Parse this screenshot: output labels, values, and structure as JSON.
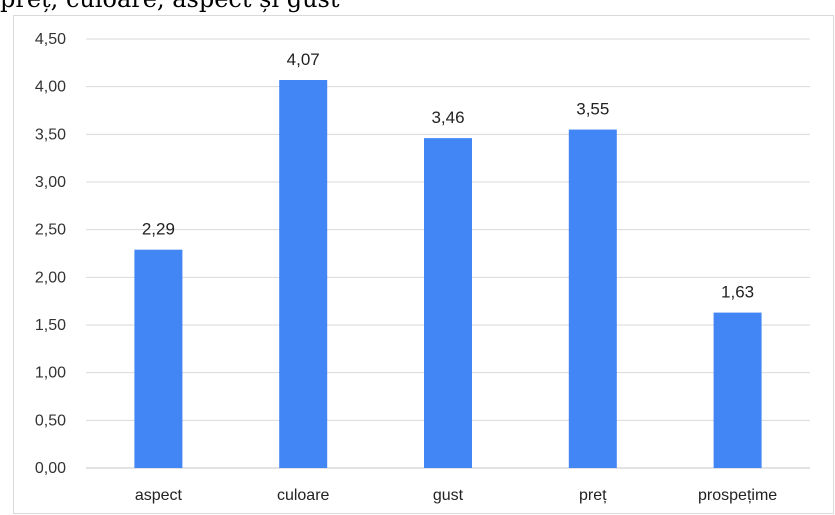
{
  "page": {
    "top_text": "preț, culoare, aspect și gust"
  },
  "chart_data": {
    "type": "bar",
    "title": "",
    "xlabel": "",
    "ylabel": "",
    "categories": [
      "aspect",
      "culoare",
      "gust",
      "preț",
      "prospețime"
    ],
    "values": [
      2.29,
      4.07,
      3.46,
      3.55,
      1.63
    ],
    "value_labels": [
      "2,29",
      "4,07",
      "3,46",
      "3,55",
      "1,63"
    ],
    "ylim": [
      0,
      4.5
    ],
    "yticks": [
      0,
      0.5,
      1,
      1.5,
      2,
      2.5,
      3,
      3.5,
      4,
      4.5
    ],
    "ytick_labels": [
      "0,00",
      "0,50",
      "1,00",
      "1,50",
      "2,00",
      "2,50",
      "3,00",
      "3,50",
      "4,00",
      "4,50"
    ],
    "grid": true,
    "legend": "none",
    "bar_color": "#4285f4",
    "grid_color": "#d9d9d9"
  }
}
